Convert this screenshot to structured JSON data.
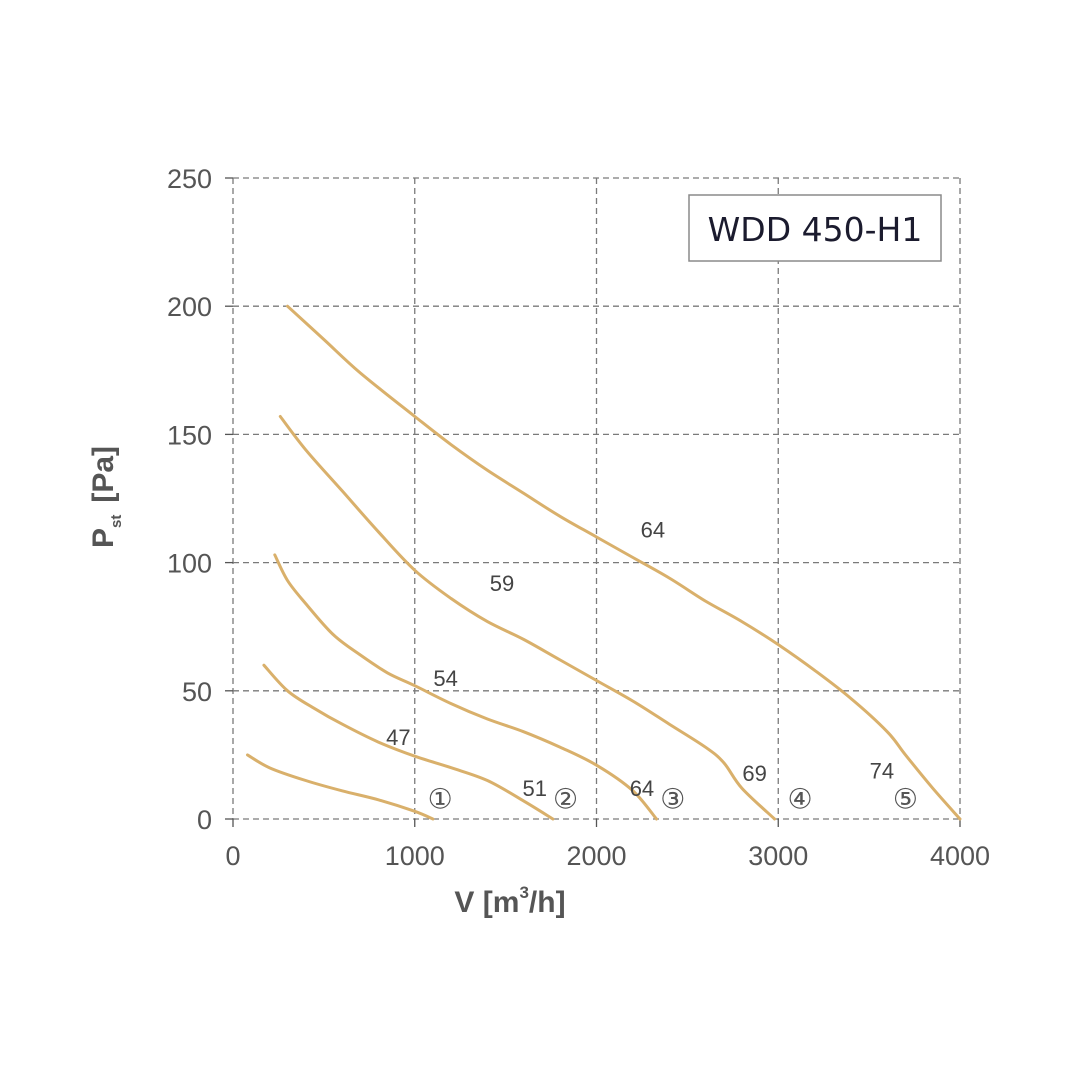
{
  "chart_data": {
    "type": "line",
    "title": "WDD 450-H1",
    "xlabel": {
      "main": "V [m",
      "sup": "3",
      "tail": "/h]"
    },
    "ylabel": {
      "main": "P",
      "sub": "st",
      "tail": "[Pa]"
    },
    "xlim": [
      0,
      4000
    ],
    "ylim": [
      0,
      250
    ],
    "xticks": [
      0,
      1000,
      2000,
      3000,
      4000
    ],
    "yticks": [
      0,
      50,
      100,
      150,
      200,
      250
    ],
    "grid": true,
    "line_color": "#d9b06b",
    "series": [
      {
        "name": "①",
        "points": [
          [
            80,
            25
          ],
          [
            200,
            20
          ],
          [
            400,
            15
          ],
          [
            600,
            11
          ],
          [
            800,
            7.5
          ],
          [
            1000,
            3
          ],
          [
            1100,
            0
          ]
        ]
      },
      {
        "name": "②",
        "points": [
          [
            170,
            60
          ],
          [
            300,
            50
          ],
          [
            450,
            43
          ],
          [
            600,
            37
          ],
          [
            800,
            30
          ],
          [
            1000,
            24.5
          ],
          [
            1200,
            20
          ],
          [
            1400,
            15
          ],
          [
            1600,
            7
          ],
          [
            1760,
            0
          ]
        ]
      },
      {
        "name": "③",
        "points": [
          [
            230,
            103
          ],
          [
            300,
            93
          ],
          [
            400,
            84
          ],
          [
            550,
            72
          ],
          [
            700,
            64
          ],
          [
            850,
            57
          ],
          [
            1000,
            52
          ],
          [
            1200,
            45
          ],
          [
            1400,
            39
          ],
          [
            1600,
            34
          ],
          [
            1800,
            28
          ],
          [
            2000,
            21
          ],
          [
            2200,
            11
          ],
          [
            2330,
            0
          ]
        ]
      },
      {
        "name": "④",
        "points": [
          [
            260,
            157
          ],
          [
            400,
            144
          ],
          [
            600,
            128
          ],
          [
            800,
            112
          ],
          [
            1000,
            97
          ],
          [
            1200,
            86
          ],
          [
            1400,
            77
          ],
          [
            1600,
            70
          ],
          [
            1800,
            62
          ],
          [
            2000,
            54
          ],
          [
            2200,
            46
          ],
          [
            2400,
            37
          ],
          [
            2600,
            28
          ],
          [
            2700,
            22
          ],
          [
            2800,
            12
          ],
          [
            2980,
            0
          ]
        ]
      },
      {
        "name": "⑤",
        "points": [
          [
            300,
            200
          ],
          [
            500,
            187
          ],
          [
            700,
            174
          ],
          [
            1000,
            157
          ],
          [
            1200,
            146
          ],
          [
            1400,
            136
          ],
          [
            1600,
            127
          ],
          [
            1800,
            118
          ],
          [
            2000,
            110
          ],
          [
            2200,
            102
          ],
          [
            2400,
            94
          ],
          [
            2600,
            85
          ],
          [
            2800,
            77
          ],
          [
            3000,
            68
          ],
          [
            3200,
            58
          ],
          [
            3400,
            47
          ],
          [
            3600,
            34
          ],
          [
            3700,
            25
          ],
          [
            3850,
            12
          ],
          [
            4000,
            0
          ]
        ]
      }
    ],
    "annotations": [
      {
        "text": "64",
        "x": 2310,
        "y": 113
      },
      {
        "text": "59",
        "x": 1480,
        "y": 92
      },
      {
        "text": "54",
        "x": 1170,
        "y": 55
      },
      {
        "text": "47",
        "x": 910,
        "y": 32
      },
      {
        "text": "51",
        "x": 1660,
        "y": 12
      },
      {
        "text": "64",
        "x": 2250,
        "y": 12
      },
      {
        "text": "69",
        "x": 2870,
        "y": 18
      },
      {
        "text": "74",
        "x": 3570,
        "y": 19
      }
    ],
    "circle_labels": [
      {
        "text": "①",
        "x": 1140,
        "y": 8
      },
      {
        "text": "②",
        "x": 1830,
        "y": 8
      },
      {
        "text": "③",
        "x": 2420,
        "y": 8
      },
      {
        "text": "④",
        "x": 3120,
        "y": 8
      },
      {
        "text": "⑤",
        "x": 3700,
        "y": 8
      }
    ]
  }
}
